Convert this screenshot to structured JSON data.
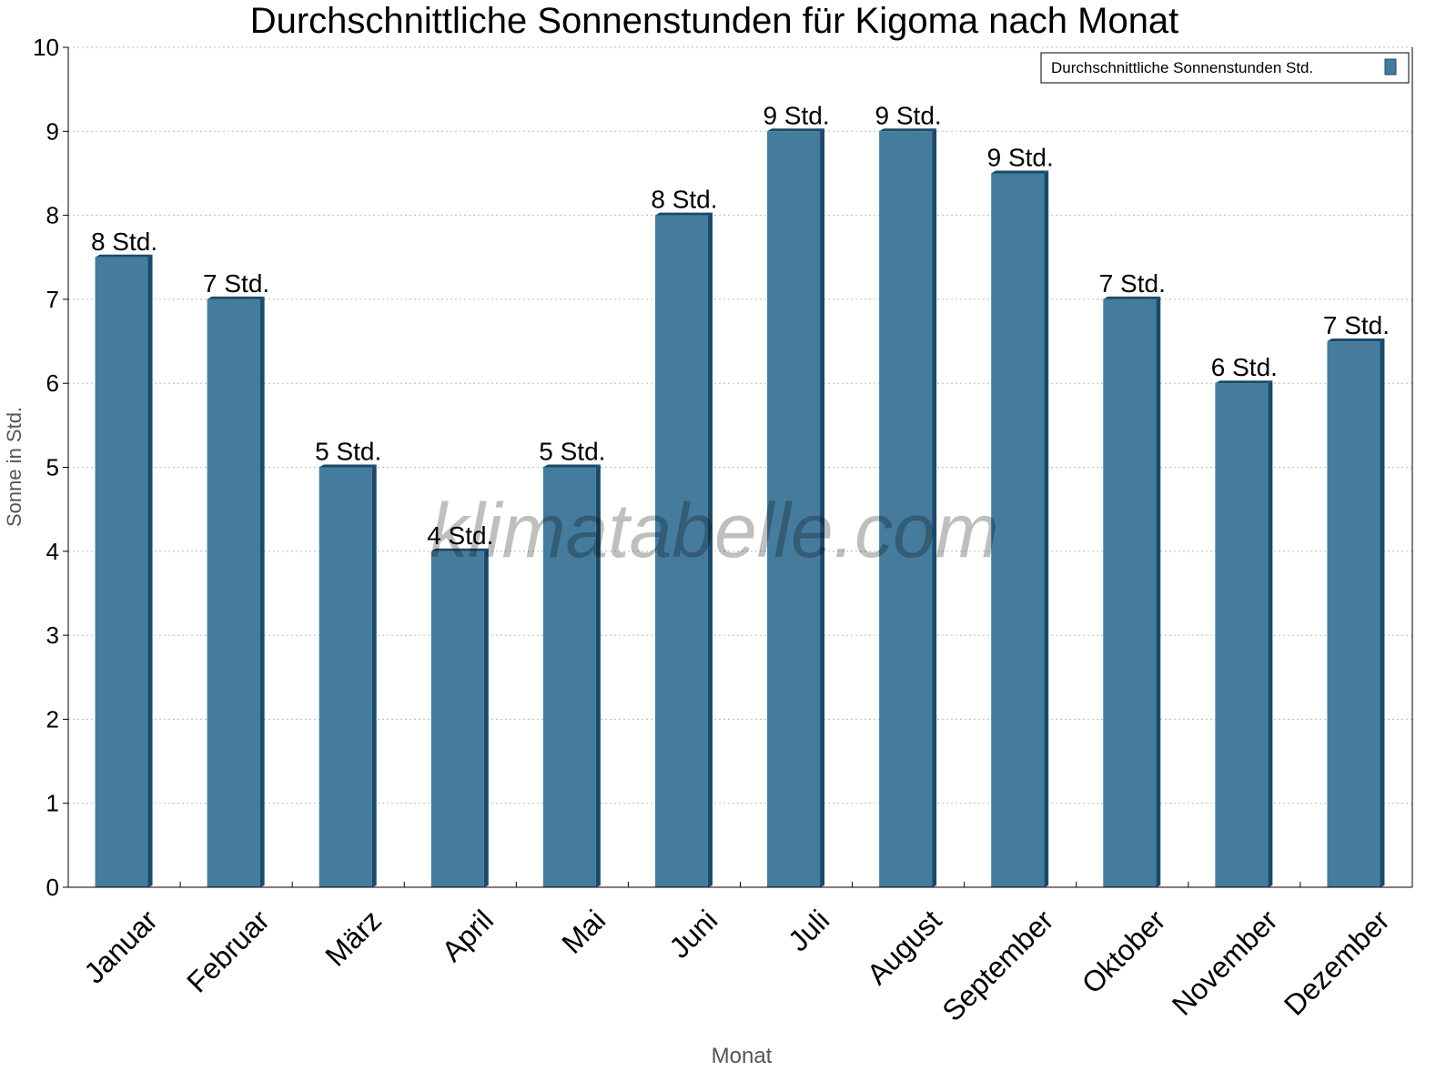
{
  "chart_data": {
    "type": "bar",
    "title": "Durchschnittliche Sonnenstunden für Kigoma nach Monat",
    "xlabel": "Monat",
    "ylabel": "Sonne in Std.",
    "ylim": [
      0,
      10
    ],
    "yticks": [
      "0",
      "1",
      "2",
      "3",
      "4",
      "5",
      "6",
      "7",
      "8",
      "9",
      "10"
    ],
    "grid": true,
    "legend_position": "top-right",
    "categories": [
      "Januar",
      "Februar",
      "März",
      "April",
      "Mai",
      "Juni",
      "Juli",
      "August",
      "September",
      "Oktober",
      "November",
      "Dezember"
    ],
    "series": [
      {
        "name": "Durchschnittliche Sonnenstunden Std.",
        "color": "#457b9d",
        "values": [
          7.5,
          7,
          5,
          4,
          5,
          8,
          9,
          9,
          8.5,
          7,
          6,
          6.5
        ],
        "data_labels": [
          "8 Std.",
          "7 Std.",
          "5 Std.",
          "4 Std.",
          "5 Std.",
          "8 Std.",
          "9 Std.",
          "9 Std.",
          "9 Std.",
          "7 Std.",
          "6 Std.",
          "7 Std."
        ]
      }
    ],
    "watermark": "klimatabelle.com"
  }
}
